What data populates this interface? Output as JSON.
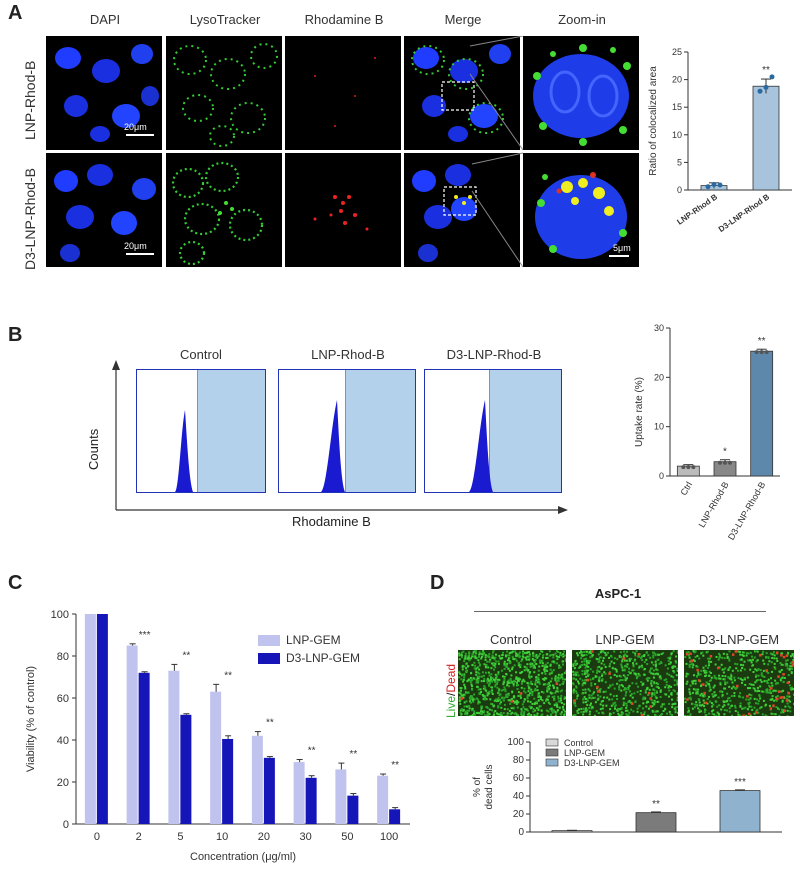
{
  "panelA": {
    "label": "A",
    "columns": [
      "DAPI",
      "LysoTracker",
      "Rhodamine B",
      "Merge",
      "Zoom-in"
    ],
    "rows": [
      "LNP-Rhod-B",
      "D3-LNP-Rhod-B"
    ],
    "scale_main": "20μm",
    "scale_zoom": "5μm",
    "chart_data": {
      "type": "bar",
      "categories": [
        "LNP-Rhod B",
        "D3-LNP-Rhod B"
      ],
      "values": [
        0.8,
        18.8
      ],
      "errors": [
        0.5,
        1.3
      ],
      "points": [
        [
          0.6,
          1.0,
          0.9
        ],
        [
          17.9,
          18.6,
          20.5
        ]
      ],
      "ylabel": "Ratio of colocalized area",
      "ylim": [
        0,
        25
      ],
      "yticks": [
        0,
        5,
        10,
        15,
        20,
        25
      ],
      "significance": [
        "",
        "**"
      ]
    }
  },
  "panelB": {
    "label": "B",
    "histograms": [
      "Control",
      "LNP-Rhod-B",
      "D3-LNP-Rhod-B"
    ],
    "ylabel": "Counts",
    "xlabel": "Rhodamine B",
    "chart_data": {
      "type": "bar",
      "categories": [
        "Ctrl",
        "LNP-Rhod-B",
        "D3-LNP-Rhod-B"
      ],
      "values": [
        2.0,
        2.9,
        25.3
      ],
      "errors": [
        0.3,
        0.4,
        0.4
      ],
      "ylabel": "Uptake rate (%)",
      "ylim": [
        0,
        30
      ],
      "yticks": [
        0,
        10,
        20,
        30
      ],
      "significance": [
        "",
        "*",
        "**"
      ]
    }
  },
  "panelC": {
    "label": "C",
    "chart_data": {
      "type": "bar",
      "categories": [
        "0",
        "2",
        "5",
        "10",
        "20",
        "30",
        "50",
        "100"
      ],
      "series": [
        {
          "name": "LNP-GEM",
          "values": [
            100,
            85,
            73,
            63,
            42,
            29.5,
            26,
            23
          ],
          "errors": [
            0,
            0.8,
            3,
            3.5,
            2,
            1.2,
            3,
            0.8
          ],
          "color": "#c0c3ee"
        },
        {
          "name": "D3-LNP-GEM",
          "values": [
            100,
            72,
            52,
            40.5,
            31.5,
            22,
            13.5,
            7
          ],
          "errors": [
            0,
            0.5,
            0.5,
            1.5,
            0.6,
            1,
            1,
            0.8
          ],
          "color": "#1515b8"
        }
      ],
      "significance": [
        "",
        "***",
        "**",
        "**",
        "**",
        "**",
        "**",
        "**"
      ],
      "xlabel": "Concentration (μg/ml)",
      "ylabel": "Viability (% of control)",
      "ylim": [
        0,
        100
      ],
      "yticks": [
        0,
        20,
        40,
        60,
        80,
        100
      ]
    }
  },
  "panelD": {
    "label": "D",
    "cell_line": "AsPC-1",
    "groups": [
      "Control",
      "LNP-GEM",
      "D3-LNP-GEM"
    ],
    "side_live": "Live",
    "side_slash": "/",
    "side_dead": "Dead",
    "chart_data": {
      "type": "bar",
      "categories": [
        "Control",
        "LNP-GEM",
        "D3-LNP-GEM"
      ],
      "values": [
        1.5,
        21.5,
        46
      ],
      "errors": [
        0.4,
        0.8,
        0.8
      ],
      "colors": [
        "#d9d9d9",
        "#7b7b7b",
        "#8fb3cf"
      ],
      "ylabel_line1": "% of",
      "ylabel_line2": "dead cells",
      "ylim": [
        0,
        100
      ],
      "yticks": [
        0,
        20,
        40,
        60,
        80,
        100
      ],
      "significance": [
        "",
        "**",
        "***"
      ]
    }
  }
}
